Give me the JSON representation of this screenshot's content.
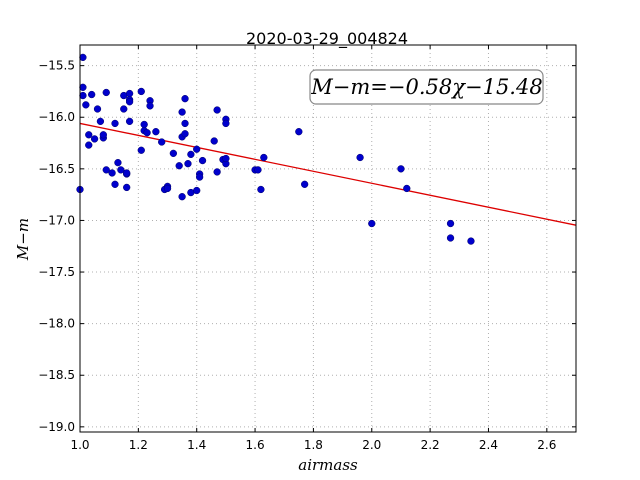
{
  "chart_data": {
    "type": "scatter",
    "title": "2020-03-29_004824",
    "xlabel": "airmass",
    "ylabel": "M−m",
    "xlim": [
      1.0,
      2.7
    ],
    "ylim": [
      -19.05,
      -15.3
    ],
    "x_ticks": [
      1.0,
      1.2,
      1.4,
      1.6,
      1.8,
      2.0,
      2.2,
      2.4,
      2.6
    ],
    "x_tick_labels": [
      "1.0",
      "1.2",
      "1.4",
      "1.6",
      "1.8",
      "2.0",
      "2.2",
      "2.4",
      "2.6"
    ],
    "y_ticks": [
      -15.5,
      -16.0,
      -16.5,
      -17.0,
      -17.5,
      -18.0,
      -18.5,
      -19.0
    ],
    "y_tick_labels": [
      "−15.5",
      "−16.0",
      "−16.5",
      "−17.0",
      "−17.5",
      "−18.0",
      "−18.5",
      "−19.0"
    ],
    "grid": true,
    "annotation": "M−m=−0.58χ−15.48",
    "fit_line": {
      "slope": -0.58,
      "intercept": -15.48,
      "color": "#dd0000"
    },
    "point_color": "#0000cc",
    "x": [
      1.0,
      1.01,
      1.01,
      1.01,
      1.02,
      1.03,
      1.03,
      1.04,
      1.05,
      1.06,
      1.07,
      1.08,
      1.08,
      1.09,
      1.09,
      1.11,
      1.12,
      1.12,
      1.13,
      1.14,
      1.15,
      1.15,
      1.16,
      1.16,
      1.16,
      1.17,
      1.17,
      1.17,
      1.17,
      1.21,
      1.21,
      1.22,
      1.22,
      1.23,
      1.24,
      1.24,
      1.26,
      1.28,
      1.29,
      1.3,
      1.3,
      1.32,
      1.34,
      1.35,
      1.35,
      1.35,
      1.36,
      1.36,
      1.36,
      1.37,
      1.38,
      1.38,
      1.4,
      1.4,
      1.41,
      1.41,
      1.42,
      1.46,
      1.47,
      1.47,
      1.49,
      1.5,
      1.5,
      1.5,
      1.5,
      1.6,
      1.61,
      1.62,
      1.63,
      1.75,
      1.77,
      1.96,
      2.0,
      2.1,
      2.12,
      2.27,
      2.27,
      2.34
    ],
    "y": [
      -16.7,
      -15.42,
      -15.71,
      -15.79,
      -15.88,
      -16.17,
      -16.27,
      -15.78,
      -16.21,
      -15.92,
      -16.04,
      -16.2,
      -16.17,
      -15.76,
      -16.51,
      -16.54,
      -16.06,
      -16.65,
      -16.44,
      -16.51,
      -15.79,
      -15.92,
      -16.55,
      -16.54,
      -16.68,
      -15.83,
      -15.77,
      -15.85,
      -16.04,
      -16.32,
      -15.75,
      -16.07,
      -16.13,
      -16.15,
      -15.84,
      -15.89,
      -16.14,
      -16.24,
      -16.7,
      -16.67,
      -16.69,
      -16.35,
      -16.47,
      -16.19,
      -16.77,
      -15.95,
      -16.06,
      -16.16,
      -15.82,
      -16.45,
      -16.73,
      -16.36,
      -16.31,
      -16.71,
      -16.55,
      -16.58,
      -16.42,
      -16.23,
      -15.93,
      -16.53,
      -16.41,
      -16.02,
      -16.06,
      -16.45,
      -16.4,
      -16.51,
      -16.51,
      -16.7,
      -16.39,
      -16.14,
      -16.65,
      -16.39,
      -17.03,
      -16.5,
      -16.69,
      -17.03,
      -17.17,
      -17.2
    ]
  }
}
